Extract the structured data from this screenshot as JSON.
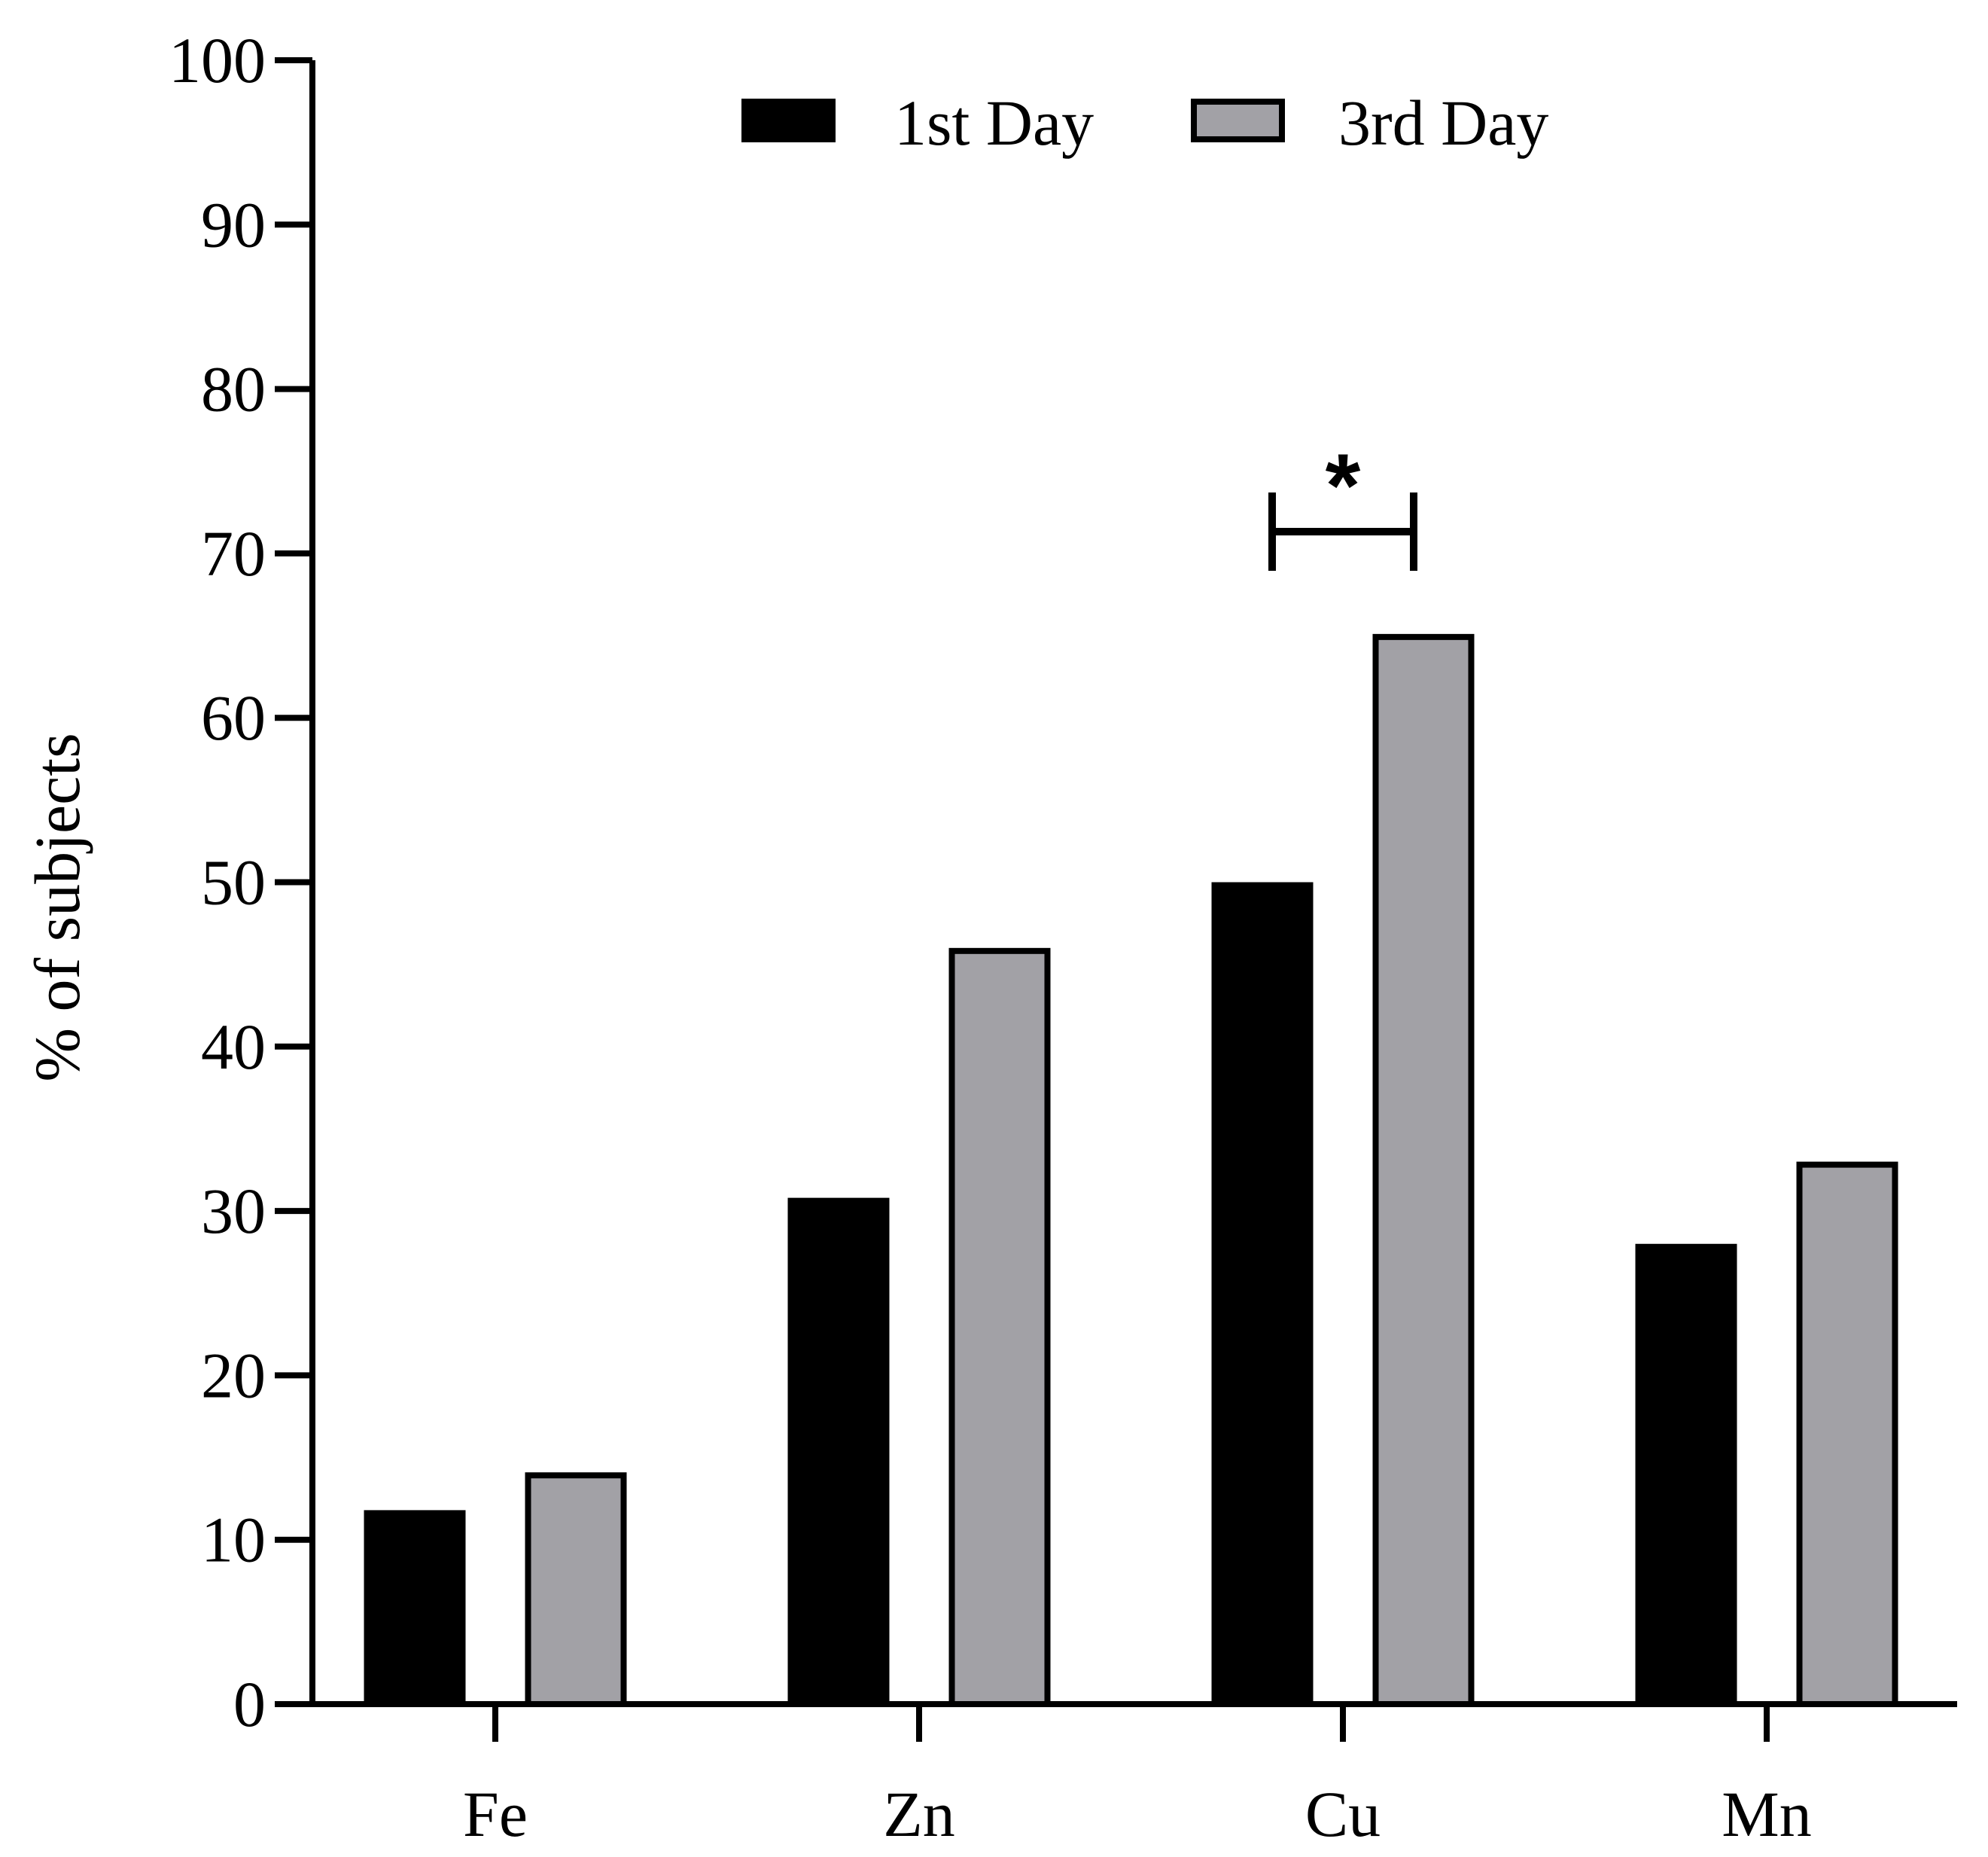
{
  "chart_data": {
    "type": "bar",
    "title": "",
    "xlabel": "",
    "ylabel": "% of subjects",
    "ylim": [
      0,
      100
    ],
    "yticks": [
      0,
      10,
      20,
      30,
      40,
      50,
      60,
      70,
      80,
      90,
      100
    ],
    "categories": [
      "Fe",
      "Zn",
      "Cu",
      "Mn"
    ],
    "series": [
      {
        "name": "1st Day",
        "color": "#000000",
        "values": [
          11.8,
          30.8,
          50.0,
          28.0
        ]
      },
      {
        "name": "3rd Day",
        "color": "#a2a1a6",
        "values": [
          14.1,
          46.0,
          65.1,
          33.0
        ]
      }
    ],
    "legend_position": "top-center",
    "annotations": [
      {
        "category": "Cu",
        "text": "*",
        "type": "significance"
      }
    ],
    "grid": false
  }
}
